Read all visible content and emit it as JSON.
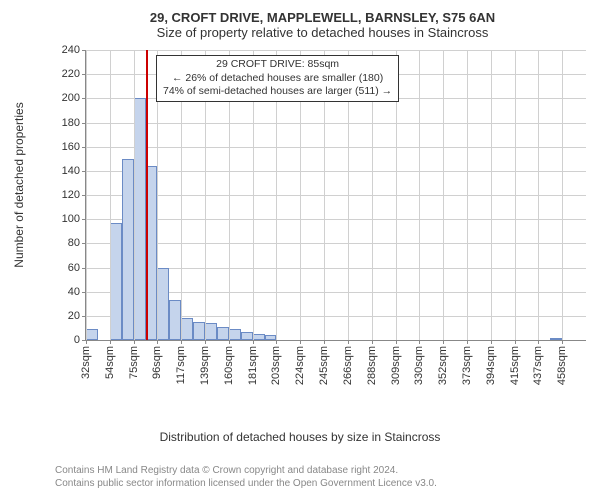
{
  "title_main": "29, CROFT DRIVE, MAPPLEWELL, BARNSLEY, S75 6AN",
  "title_sub": "Size of property relative to detached houses in Staincross",
  "x_axis_label": "Distribution of detached houses by size in Staincross",
  "y_axis_label": "Number of detached properties",
  "attribution_line1": "Contains HM Land Registry data © Crown copyright and database right 2024.",
  "attribution_line2": "Contains public sector information licensed under the Open Government Licence v3.0.",
  "annotation": {
    "line1": "29 CROFT DRIVE: 85sqm",
    "line2": "← 26% of detached houses are smaller (180)",
    "line3": "74% of semi-detached houses are larger (511) →"
  },
  "chart": {
    "type": "histogram",
    "ylim": [
      0,
      240
    ],
    "ytick_step": 20,
    "x_categories": [
      "32sqm",
      "54sqm",
      "75sqm",
      "96sqm",
      "117sqm",
      "139sqm",
      "160sqm",
      "181sqm",
      "203sqm",
      "224sqm",
      "245sqm",
      "266sqm",
      "288sqm",
      "309sqm",
      "330sqm",
      "352sqm",
      "373sqm",
      "394sqm",
      "415sqm",
      "437sqm",
      "458sqm"
    ],
    "bar_values": [
      9,
      0,
      97,
      150,
      200,
      144,
      60,
      33,
      18,
      15,
      14,
      11,
      9,
      7,
      5,
      4,
      0,
      0,
      0,
      0,
      0,
      0,
      0,
      0,
      0,
      0,
      0,
      0,
      0,
      0,
      0,
      0,
      0,
      0,
      0,
      0,
      0,
      0,
      0,
      2,
      0,
      0
    ],
    "bar_color": "#c5d4ec",
    "bar_border_color": "#6b8bc5",
    "grid_color": "#d0d0d0",
    "marker_color": "#cc0000",
    "marker_at_bar": 5,
    "background_color": "#ffffff",
    "title_fontsize": 13,
    "label_fontsize": 12,
    "tick_fontsize": 11
  }
}
